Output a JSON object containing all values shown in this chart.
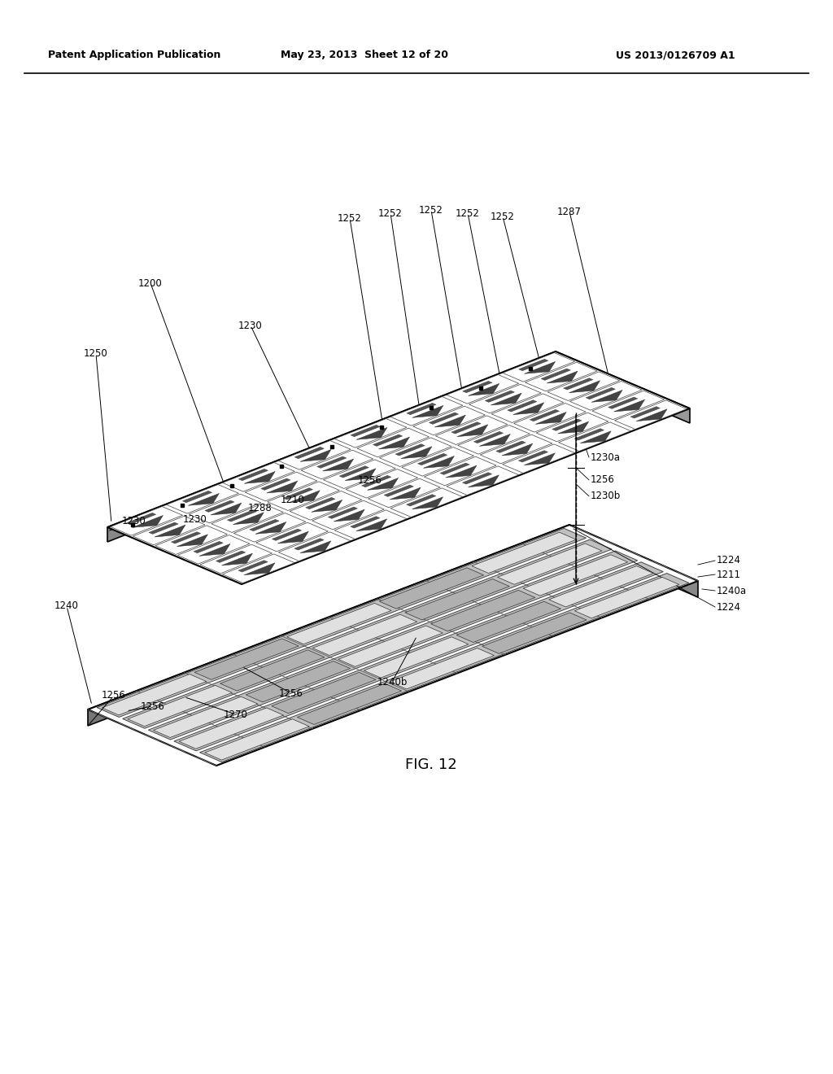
{
  "header_left": "Patent Application Publication",
  "header_center": "May 23, 2013  Sheet 12 of 20",
  "header_right": "US 2013/0126709 A1",
  "figure_label": "FIG. 12",
  "background_color": "#ffffff",
  "line_color": "#000000",
  "chip1_color_top": "#ffffff",
  "chip1_color_side": "#888888",
  "chip2_color_top": "#ffffff",
  "chip2_color_side": "#777777",
  "strip_color": "#bbbbbb",
  "cell_color_light": "#e8e8e8",
  "cell_color_dark": "#999999"
}
